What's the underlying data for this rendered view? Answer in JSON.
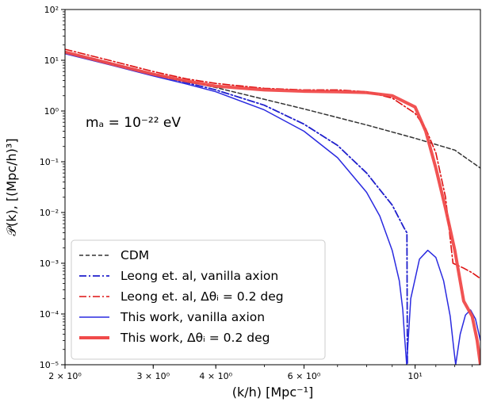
{
  "chart_data": {
    "type": "line",
    "xlabel": "(k/h) [Mpc⁻¹]",
    "ylabel": "𝒫(k), [(Mpc/h)³]",
    "x_scale": "log",
    "y_scale": "log",
    "xlim": [
      2.0,
      13.5
    ],
    "ylim": [
      1e-05,
      100
    ],
    "x_tick_labels": [
      {
        "value": 2,
        "label": "2 × 10⁰"
      },
      {
        "value": 3,
        "label": "3 × 10⁰"
      },
      {
        "value": 4,
        "label": "4 × 10⁰"
      },
      {
        "value": 6,
        "label": "6 × 10⁰"
      },
      {
        "value": 10,
        "label": "10¹"
      }
    ],
    "y_tick_labels": [
      {
        "value": 100,
        "label": "10²"
      },
      {
        "value": 10,
        "label": "10¹"
      },
      {
        "value": 1,
        "label": "10⁰"
      },
      {
        "value": 0.1,
        "label": "10⁻¹"
      },
      {
        "value": 0.01,
        "label": "10⁻²"
      },
      {
        "value": 0.001,
        "label": "10⁻³"
      },
      {
        "value": 0.0001,
        "label": "10⁻⁴"
      },
      {
        "value": 1e-05,
        "label": "10⁻⁵"
      }
    ],
    "annotation": "mₐ = 10⁻²² eV",
    "legend_position": "bottom-left",
    "grid": false,
    "series": [
      {
        "name": "CDM",
        "color": "#333333",
        "style": "dashed",
        "x": [
          2.0,
          3.0,
          4.0,
          6.0,
          8.0,
          10.0,
          12.0,
          13.5
        ],
        "y": [
          14,
          5.3,
          2.9,
          1.1,
          0.53,
          0.29,
          0.17,
          0.075
        ]
      },
      {
        "name": "Leong et. al, vanilla axion",
        "color": "#1f1fcc",
        "style": "dashdot",
        "x": [
          2.0,
          2.5,
          3.0,
          3.5,
          4.0,
          5.0,
          6.0,
          7.0,
          8.0,
          9.0,
          9.5,
          9.63,
          9.65
        ],
        "y": [
          14,
          8.5,
          5.2,
          3.6,
          2.6,
          1.3,
          0.55,
          0.21,
          0.06,
          0.014,
          0.005,
          0.004,
          1e-05
        ]
      },
      {
        "name": "Leong et. al, Δθᵢ = 0.2 deg",
        "color": "#dd1111",
        "style": "dashdot",
        "x": [
          2.0,
          2.5,
          3.0,
          3.5,
          4.0,
          5.0,
          6.0,
          7.0,
          8.0,
          9.0,
          10.0,
          10.5,
          11.0,
          11.5,
          11.9,
          12.5,
          13.0,
          13.5
        ],
        "y": [
          16.5,
          9.5,
          6.0,
          4.3,
          3.5,
          2.8,
          2.6,
          2.6,
          2.4,
          1.8,
          0.9,
          0.45,
          0.15,
          0.02,
          0.001,
          0.0008,
          0.00065,
          0.0005
        ]
      },
      {
        "name": "This work, vanilla axion",
        "color": "#2a2ae0",
        "style": "solid",
        "x": [
          2.0,
          2.5,
          3.0,
          3.5,
          4.0,
          5.0,
          6.0,
          7.0,
          8.0,
          8.5,
          9.0,
          9.3,
          9.45,
          9.52,
          9.62,
          9.8,
          10.2,
          10.6,
          11.0,
          11.4,
          11.75,
          11.95,
          12.05,
          12.3,
          12.6,
          12.9,
          13.2,
          13.5
        ],
        "y": [
          13.5,
          7.8,
          4.9,
          3.4,
          2.4,
          1.05,
          0.4,
          0.12,
          0.025,
          0.0085,
          0.0018,
          0.00045,
          0.00012,
          4e-05,
          1e-05,
          0.0002,
          0.0012,
          0.0018,
          0.0013,
          0.00045,
          9e-05,
          2e-05,
          1e-05,
          4e-05,
          9.5e-05,
          0.00012,
          8e-05,
          3e-05
        ]
      },
      {
        "name": "This work, Δθᵢ = 0.2 deg",
        "color": "#f04a4a",
        "style": "solid",
        "x": [
          2.0,
          2.5,
          3.0,
          3.5,
          4.0,
          5.0,
          6.0,
          7.0,
          8.0,
          9.0,
          10.0,
          10.5,
          11.0,
          11.5,
          12.0,
          12.5,
          13.0,
          13.3,
          13.5
        ],
        "y": [
          14.5,
          8.3,
          5.3,
          3.9,
          3.1,
          2.6,
          2.45,
          2.4,
          2.3,
          2.0,
          1.2,
          0.4,
          0.075,
          0.012,
          0.0018,
          0.00018,
          9e-05,
          3e-05,
          1e-05
        ]
      }
    ]
  }
}
